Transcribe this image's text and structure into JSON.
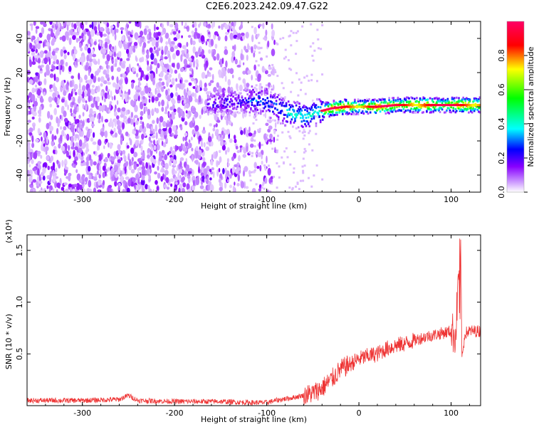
{
  "title": "C2E6.2023.242.09.47.G22",
  "chart_data": [
    {
      "type": "heatmap",
      "xlabel": "Height of straight line (km)",
      "ylabel": "Frequency (Hz)",
      "xlim": [
        -360,
        132
      ],
      "ylim": [
        -50,
        50
      ],
      "xticks": [
        "-300",
        "-200",
        "-100",
        "0",
        "100"
      ],
      "yticks": [
        "40",
        "20",
        "0",
        "-20",
        "-40"
      ],
      "colorbar": {
        "label": "Normalized spectral amplitude",
        "range": [
          0.0,
          1.0
        ],
        "ticks": [
          "0.0",
          "0.2",
          "0.4",
          "0.6",
          "0.8"
        ],
        "colors": [
          "#ffffff",
          "#cc99ff",
          "#8800ff",
          "#0000ff",
          "#00ffff",
          "#00ff00",
          "#ffff00",
          "#ff0000",
          "#ff0066"
        ]
      },
      "regions": [
        {
          "x_range": [
            -360,
            -120
          ],
          "freq_range": [
            -50,
            50
          ],
          "description_level": 0.15
        },
        {
          "x_range": [
            -120,
            -90
          ],
          "freq_range": [
            -50,
            50
          ],
          "description_level": 0.08
        },
        {
          "x_range": [
            -120,
            -80
          ],
          "freq_range": [
            -5,
            10
          ],
          "description_level": 0.35
        },
        {
          "x_range": [
            -80,
            -40
          ],
          "freq_range": [
            -12,
            3
          ],
          "description_level": 0.45
        },
        {
          "x_range": [
            -40,
            132
          ],
          "freq_range": [
            -3,
            4
          ],
          "description_level": 0.75
        }
      ],
      "ridge": {
        "x": [
          -160,
          -130,
          -110,
          -90,
          -75,
          -60,
          -45,
          -30,
          -15,
          0,
          20,
          40,
          60,
          80,
          100,
          120,
          132
        ],
        "freq": [
          2,
          3,
          4,
          0,
          -4,
          -6,
          -3,
          -1,
          0,
          0,
          0,
          1,
          1,
          1,
          1,
          1,
          1
        ]
      }
    },
    {
      "type": "line",
      "xlabel": "Height of straight line (km)",
      "ylabel": "SNR (10 * v/v)",
      "multiplier": "(x10⁴)",
      "xlim": [
        -360,
        132
      ],
      "ylim": [
        0,
        1.65
      ],
      "xticks": [
        "-300",
        "-200",
        "-100",
        "0",
        "100"
      ],
      "yticks": [
        "0.5",
        "1.0",
        "1.5"
      ],
      "series": [
        {
          "color": "#ee3333",
          "x": [
            -360,
            -300,
            -260,
            -250,
            -240,
            -200,
            -150,
            -120,
            -100,
            -90,
            -70,
            -50,
            -40,
            -30,
            -20,
            -10,
            0,
            10,
            20,
            30,
            40,
            50,
            60,
            70,
            80,
            90,
            100,
            105,
            110,
            112,
            115,
            120,
            132
          ],
          "y": [
            0.05,
            0.05,
            0.06,
            0.1,
            0.05,
            0.04,
            0.04,
            0.03,
            0.03,
            0.05,
            0.08,
            0.12,
            0.17,
            0.25,
            0.35,
            0.4,
            0.45,
            0.48,
            0.5,
            0.55,
            0.58,
            0.6,
            0.63,
            0.66,
            0.68,
            0.7,
            0.72,
            0.68,
            1.65,
            0.45,
            0.7,
            0.72,
            0.72
          ]
        }
      ]
    }
  ]
}
